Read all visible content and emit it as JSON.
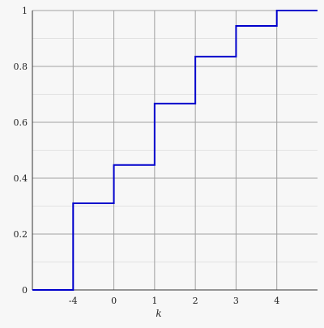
{
  "chart_data": {
    "type": "line",
    "step": true,
    "title": "",
    "xlabel": "k",
    "ylabel": "",
    "x_categories": [
      "-4",
      "0",
      "1",
      "2",
      "3",
      "4"
    ],
    "xlim_positions": [
      -1,
      6
    ],
    "ylim": [
      0,
      1
    ],
    "y_ticks": [
      0,
      0.2,
      0.4,
      0.6,
      0.8,
      1
    ],
    "y_tick_labels": [
      "0",
      "0.2",
      "0.4",
      "0.6",
      "0.8",
      "1"
    ],
    "grid": true,
    "minor_grid": true,
    "series": [
      {
        "points": [
          {
            "x": -1,
            "y": 0
          },
          {
            "x": 0,
            "y": 0.31
          },
          {
            "x": 1,
            "y": 0.447
          },
          {
            "x": 2,
            "y": 0.667
          },
          {
            "x": 3,
            "y": 0.835
          },
          {
            "x": 4,
            "y": 0.945
          },
          {
            "x": 5,
            "y": 1
          },
          {
            "x": 6,
            "y": 1
          }
        ]
      }
    ],
    "colors": {
      "line": "#0000cc",
      "grid": "#a0a0a0",
      "minor_grid": "#e2e2e2",
      "axis": "#333333",
      "background": "#f7f7f7"
    }
  }
}
